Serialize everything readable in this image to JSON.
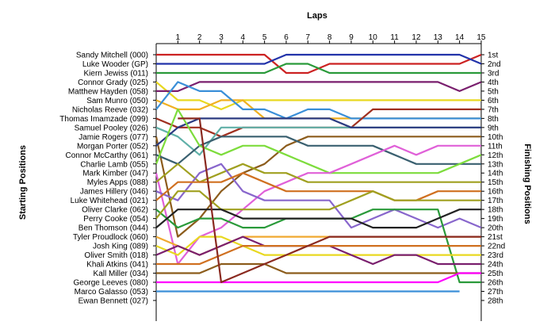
{
  "chart_data": {
    "type": "line",
    "title": "Laps",
    "ylabel_left": "Starting Positions",
    "ylabel_right": "Finishing Positions",
    "x": [
      0,
      1,
      2,
      3,
      4,
      5,
      6,
      7,
      8,
      9,
      10,
      11,
      12,
      13,
      14,
      15
    ],
    "x_tick_labels": [
      "1",
      "2",
      "3",
      "4",
      "5",
      "6",
      "7",
      "8",
      "9",
      "10",
      "11",
      "12",
      "13",
      "14",
      "15"
    ],
    "ylim": [
      1,
      28
    ],
    "y_inverted": true,
    "starting_labels": [
      "Sandy Mitchell (000)",
      "Luke Wooder (GP)",
      "Kiern Jewiss (011)",
      "Connor Grady (025)",
      "Matthew Hayden (058)",
      "Sam Munro (050)",
      "Nicholas Reeve (032)",
      "Thomas Imamzade (099)",
      "Samuel Pooley (026)",
      "Jamie Rogers (077)",
      "Morgan Porter (052)",
      "Connor McCarthy (061)",
      "Charlie Lamb (055)",
      "Mark Kimber (047)",
      "Myles Apps (088)",
      "James Hillery (046)",
      "Luke Whitehead (021)",
      "Oliver Clarke (062)",
      "Perry Cooke (054)",
      "Ben Thomson (044)",
      "Tyler Proudlock (060)",
      "Josh King (089)",
      "Oliver Smith (018)",
      "Khali Atkins (041)",
      "Kall Miller (034)",
      "George Leeves (080)",
      "Marco Galasso (053)",
      "Ewan Bennett (027)"
    ],
    "finishing_labels": [
      "1st",
      "2nd",
      "3rd",
      "4th",
      "5th",
      "6th",
      "7th",
      "8th",
      "9th",
      "10th",
      "11th",
      "12th",
      "13th",
      "14th",
      "15th",
      "16th",
      "17th",
      "18th",
      "19th",
      "20th",
      "21st",
      "22nd",
      "23rd",
      "24th",
      "25th",
      "26th",
      "27th",
      "28th"
    ],
    "grid": false,
    "series": [
      {
        "color": "#cc2222",
        "values": [
          1,
          1,
          1,
          1,
          1,
          1,
          3,
          3,
          2,
          2,
          2,
          2,
          2,
          2,
          2,
          1
        ]
      },
      {
        "color": "#2233aa",
        "values": [
          2,
          2,
          2,
          2,
          2,
          2,
          1,
          1,
          1,
          1,
          1,
          1,
          1,
          1,
          1,
          2
        ]
      },
      {
        "color": "#2a9a3a",
        "values": [
          3,
          3,
          3,
          3,
          3,
          3,
          2,
          2,
          3,
          3,
          3,
          3,
          3,
          3,
          3,
          3
        ]
      },
      {
        "color": "#e8d820",
        "values": [
          4,
          6,
          6,
          7,
          6,
          6,
          6,
          6,
          6,
          6,
          6,
          6,
          6,
          6,
          6,
          6
        ]
      },
      {
        "color": "#7a1f6e",
        "values": [
          5,
          5,
          4,
          4,
          4,
          4,
          4,
          4,
          4,
          4,
          4,
          4,
          4,
          4,
          5,
          4
        ]
      },
      {
        "color": "#f0b020",
        "values": [
          6,
          7,
          7,
          6,
          6,
          8,
          8,
          8,
          8,
          8,
          8,
          8,
          8,
          8,
          8,
          8
        ]
      },
      {
        "color": "#3a8fd8",
        "values": [
          7,
          4,
          5,
          5,
          7,
          7,
          8,
          7,
          7,
          8,
          8,
          8,
          8,
          8,
          8,
          8
        ]
      },
      {
        "color": "#a03020",
        "values": [
          8,
          9,
          9,
          10,
          9,
          9,
          9,
          9,
          9,
          9,
          7,
          7,
          7,
          7,
          7,
          7
        ]
      },
      {
        "color": "#60b0a8",
        "values": [
          9,
          10,
          12,
          9,
          9,
          9,
          9,
          9,
          9,
          9,
          9,
          9,
          9,
          9,
          9,
          9
        ]
      },
      {
        "color": "#8c5c1c",
        "values": [
          10,
          21,
          19,
          16,
          14,
          13,
          11,
          10,
          10,
          10,
          10,
          10,
          10,
          10,
          10,
          10
        ]
      },
      {
        "color": "#2b3a80",
        "values": [
          11,
          9,
          8,
          8,
          8,
          8,
          8,
          8,
          8,
          9,
          9,
          9,
          9,
          9,
          9,
          9
        ]
      },
      {
        "color": "#3a6070",
        "values": [
          12,
          13,
          11,
          10,
          10,
          10,
          10,
          11,
          11,
          11,
          11,
          12,
          13,
          13,
          13,
          13
        ]
      },
      {
        "color": "#7ddc3c",
        "values": [
          13,
          7,
          11,
          12,
          11,
          11,
          12,
          13,
          14,
          14,
          14,
          14,
          14,
          14,
          13,
          12
        ]
      },
      {
        "color": "#e060d8",
        "values": [
          14,
          24,
          21,
          20,
          18,
          16,
          15,
          14,
          14,
          13,
          12,
          11,
          12,
          11,
          11,
          11
        ]
      },
      {
        "color": "#a0a020",
        "values": [
          15,
          13,
          15,
          14,
          13,
          14,
          14,
          15,
          15,
          15,
          15,
          15,
          15,
          15,
          15,
          15
        ]
      },
      {
        "color": "#8866cc",
        "values": [
          16,
          17,
          14,
          13,
          16,
          17,
          17,
          17,
          17,
          20,
          19,
          18,
          19,
          20,
          19,
          20
        ]
      },
      {
        "color": "#d07020",
        "values": [
          17,
          15,
          15,
          15,
          14,
          15,
          16,
          16,
          16,
          16,
          16,
          17,
          17,
          16,
          16,
          16
        ]
      },
      {
        "color": "#2a9a3a",
        "values": [
          18,
          20,
          19,
          19,
          20,
          20,
          19,
          19,
          19,
          19,
          18,
          18,
          18,
          18,
          26,
          26
        ]
      },
      {
        "color": "#a0a020",
        "values": [
          19,
          16,
          16,
          18,
          18,
          18,
          18,
          18,
          18,
          17,
          16,
          17,
          17,
          17,
          17,
          17
        ]
      },
      {
        "color": "#222222",
        "values": [
          20,
          18,
          18,
          18,
          19,
          19,
          19,
          19,
          19,
          19,
          20,
          20,
          20,
          19,
          18,
          18
        ]
      },
      {
        "color": "#f0a830",
        "values": [
          21,
          22,
          23,
          22,
          21,
          21,
          21,
          21,
          21,
          21,
          21,
          21,
          21,
          21,
          21,
          21
        ]
      },
      {
        "color": "#e8d820",
        "values": [
          22,
          23,
          21,
          21,
          22,
          23,
          23,
          23,
          23,
          23,
          23,
          23,
          23,
          23,
          23,
          23
        ]
      },
      {
        "color": "#7a1f6e",
        "values": [
          23,
          22,
          23,
          22,
          21,
          22,
          22,
          22,
          22,
          23,
          24,
          23,
          23,
          24,
          24,
          24
        ]
      },
      {
        "color": "#d07020",
        "values": [
          24,
          24,
          24,
          23,
          22,
          22,
          22,
          22,
          22,
          22,
          22,
          22,
          22,
          22,
          22,
          22
        ]
      },
      {
        "color": "#8c5c1c",
        "values": [
          25,
          25,
          25,
          24,
          24,
          24,
          25,
          25,
          25,
          25,
          25,
          25,
          25,
          25,
          25,
          25
        ]
      },
      {
        "color": "#ff00ff",
        "values": [
          26,
          26,
          26,
          26,
          26,
          26,
          26,
          26,
          26,
          26,
          26,
          26,
          26,
          26,
          25,
          25
        ]
      },
      {
        "color": "#3a8fd8",
        "values": [
          27,
          27,
          27,
          27,
          27,
          27,
          27,
          27,
          27,
          27,
          27,
          27,
          27,
          27,
          27,
          null
        ]
      },
      {
        "color": "#8a2a20",
        "values": [
          null,
          8,
          8,
          26,
          25,
          24,
          23,
          22,
          21,
          21,
          21,
          21,
          21,
          21,
          21,
          21
        ]
      }
    ]
  }
}
